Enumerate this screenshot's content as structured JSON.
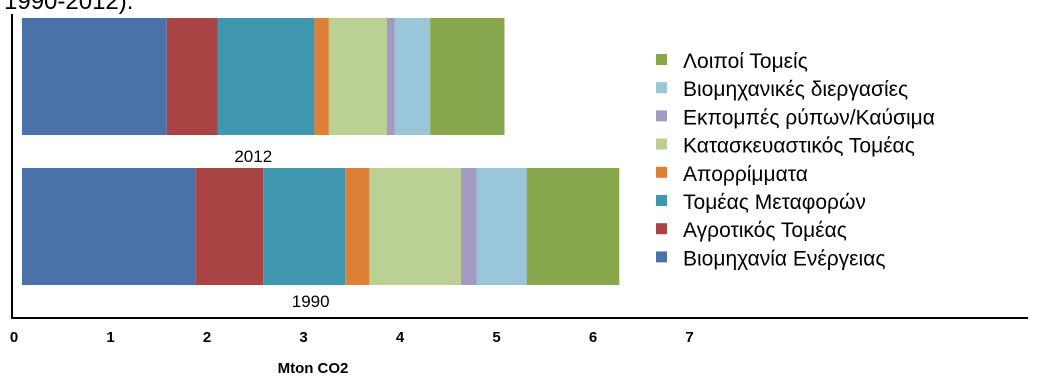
{
  "caption_fragment": "1990-2012).",
  "chart_data": {
    "type": "bar",
    "orientation": "horizontal",
    "stacked": true,
    "categories": [
      "2012",
      "1990"
    ],
    "series": [
      {
        "name": "Βιομηχανία Ενέργειας",
        "color": "#4A72A8",
        "values": [
          1.5,
          1.8
        ]
      },
      {
        "name": "Αγροτικός Τομέας",
        "color": "#A84444",
        "values": [
          0.53,
          0.7
        ]
      },
      {
        "name": "Τομέας Μεταφορών",
        "color": "#3E97AE",
        "values": [
          1.0,
          0.85
        ]
      },
      {
        "name": "Απορρίμματα",
        "color": "#DE8138",
        "values": [
          0.15,
          0.25
        ]
      },
      {
        "name": "Κατασκευαστικός Τομέας",
        "color": "#BBD193",
        "values": [
          0.6,
          0.95
        ]
      },
      {
        "name": "Εκπομπές ρύπων/Καύσιμα",
        "color": "#A39AC2",
        "values": [
          0.08,
          0.16
        ]
      },
      {
        "name": "Βιομηχανικές διεργασίες",
        "color": "#99C6D9",
        "values": [
          0.37,
          0.52
        ]
      },
      {
        "name": "Λοιποί Τομείς",
        "color": "#89A84D",
        "values": [
          0.77,
          0.96
        ]
      }
    ],
    "xlim": [
      0,
      7
    ],
    "xticks": [
      "0",
      "1",
      "2",
      "3",
      "4",
      "5",
      "6",
      "7"
    ],
    "xlabel": "Mton CO2",
    "ylabel": "",
    "grid": false,
    "legend_position": "right"
  }
}
